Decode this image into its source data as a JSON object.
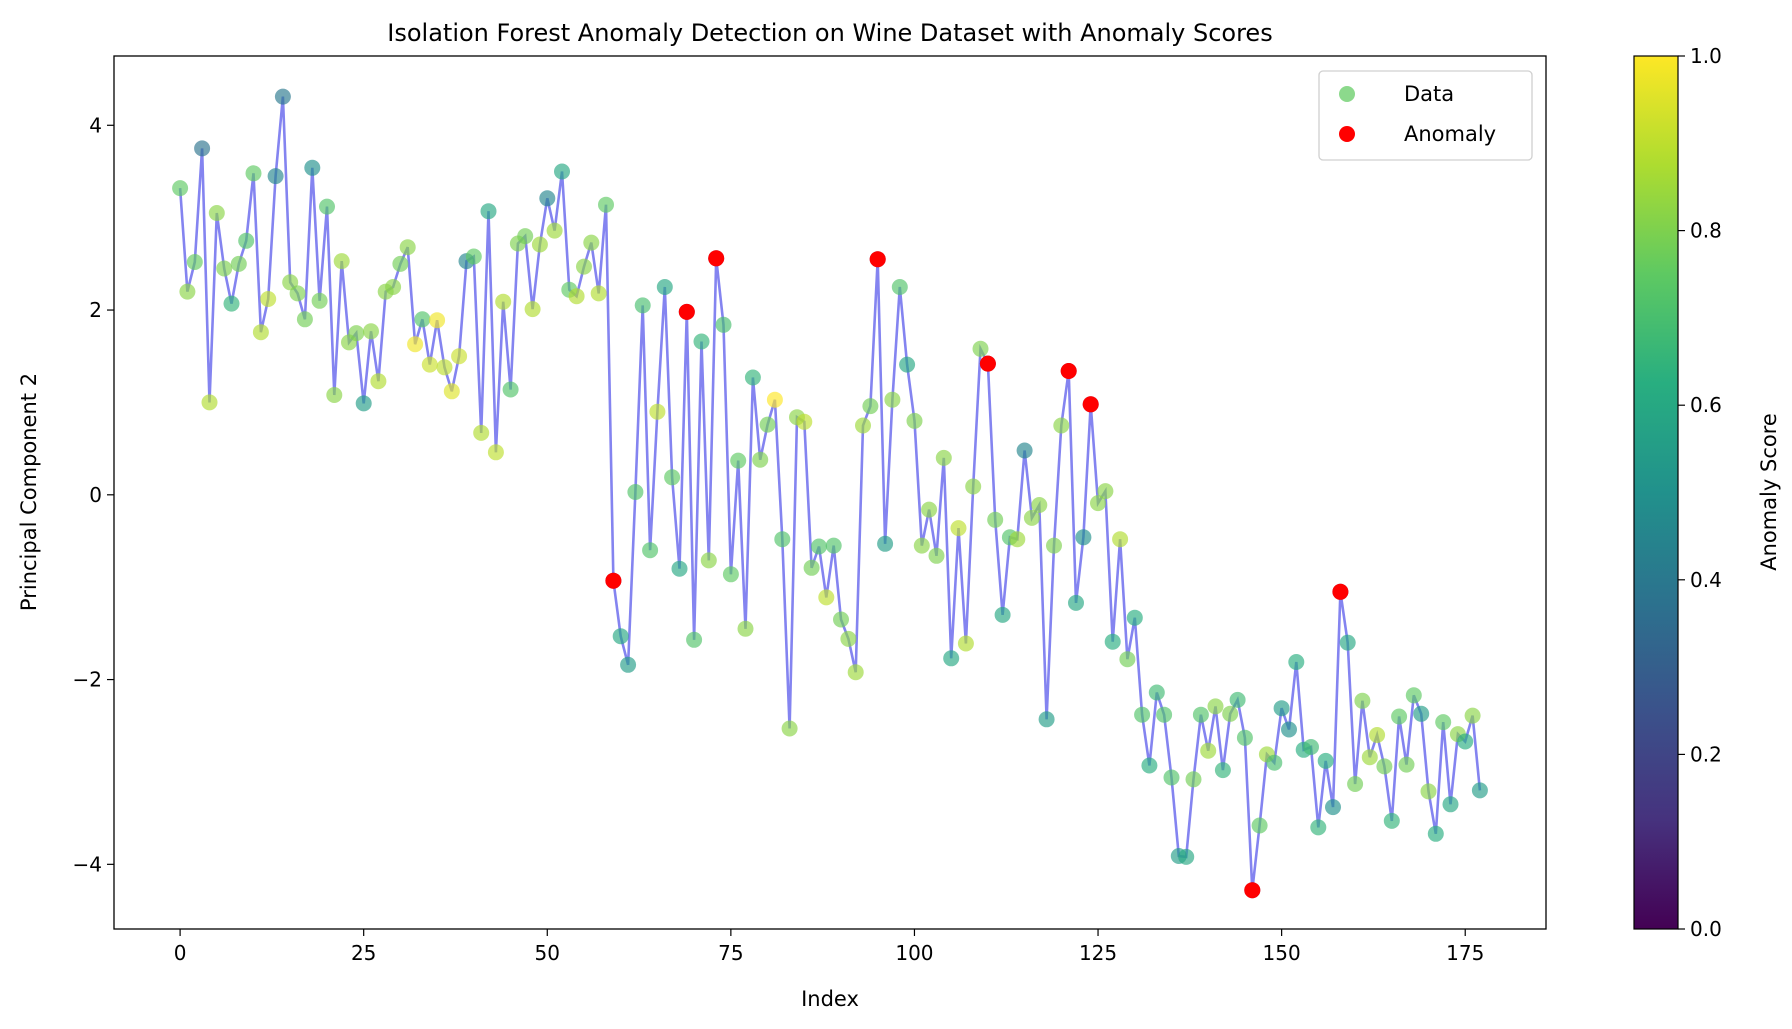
{
  "chart_data": {
    "type": "scatter",
    "title": "Isolation Forest Anomaly Detection on Wine Dataset with Anomaly Scores",
    "xlabel": "Index",
    "ylabel": "Principal Component 2",
    "xlim": [
      -9,
      186
    ],
    "ylim": [
      -4.7,
      4.75
    ],
    "xticks": [
      0,
      25,
      50,
      75,
      100,
      125,
      150,
      175
    ],
    "yticks": [
      -4,
      -2,
      0,
      2,
      4
    ],
    "legend_position": "top-right",
    "line_color": "#7777ee",
    "anomaly_color": "#ff0000",
    "data_marker_color": "#66cc66",
    "series": [
      {
        "name": "Data",
        "y": [
          3.32,
          2.2,
          2.52,
          3.75,
          1.0,
          3.05,
          2.45,
          2.07,
          2.5,
          2.75,
          3.48,
          1.76,
          2.12,
          3.45,
          4.31,
          2.3,
          2.18,
          1.9,
          3.54,
          2.1,
          3.12,
          1.08,
          2.53,
          1.65,
          1.75,
          0.99,
          1.77,
          1.23,
          2.2,
          2.25,
          2.5,
          2.68,
          1.63,
          1.9,
          1.41,
          1.89,
          1.38,
          1.12,
          1.5,
          2.53,
          2.58,
          0.67,
          3.07,
          0.46,
          2.09,
          1.14,
          2.72,
          2.8,
          2.01,
          2.71,
          3.21,
          2.86,
          3.5,
          2.22,
          2.15,
          2.47,
          2.73,
          2.18,
          3.14,
          -0.93,
          -1.53,
          -1.84,
          0.03,
          2.05,
          -0.6,
          0.9,
          2.25,
          0.19,
          -0.8,
          1.98,
          -1.57,
          1.66,
          -0.71,
          2.56,
          1.84,
          -0.86,
          0.37,
          -1.45,
          1.27,
          0.38,
          0.76,
          1.03,
          -0.48,
          -2.53,
          0.84,
          0.79,
          -0.79,
          -0.56,
          -1.11,
          -0.55,
          -1.35,
          -1.56,
          -1.92,
          0.75,
          0.96,
          2.55,
          -0.53,
          1.03,
          2.25,
          1.41,
          0.8,
          -0.55,
          -0.16,
          -0.66,
          0.4,
          -1.77,
          -0.36,
          -1.61,
          0.09,
          1.58,
          1.42,
          -0.27,
          -1.3,
          -0.46,
          -0.48,
          0.48,
          -0.25,
          -0.11,
          -2.43,
          -0.55,
          0.75,
          1.34,
          -1.17,
          -0.46,
          0.98,
          -0.09,
          0.04,
          -1.59,
          -0.48,
          -1.78,
          -1.33,
          -2.38,
          -2.93,
          -2.14,
          -2.38,
          -3.06,
          -3.91,
          -3.92,
          -3.08,
          -2.38,
          -2.77,
          -2.29,
          -2.98,
          -2.37,
          -2.22,
          -2.63,
          -4.28,
          -3.58,
          -2.81,
          -2.9,
          -2.31,
          -2.54,
          -1.81,
          -2.76,
          -2.73,
          -3.6,
          -2.88,
          -3.38,
          -1.05,
          -1.6,
          -3.13,
          -2.23,
          -2.84,
          -2.6,
          -2.94,
          -3.53,
          -2.4,
          -2.92,
          -2.17,
          -2.37,
          -3.21,
          -3.67,
          -2.46,
          -3.35,
          -2.59,
          -2.67,
          -2.39,
          -3.2
        ],
        "score": [
          0.75,
          0.82,
          0.76,
          0.38,
          0.88,
          0.82,
          0.8,
          0.65,
          0.78,
          0.72,
          0.75,
          0.88,
          0.9,
          0.45,
          0.4,
          0.82,
          0.8,
          0.78,
          0.5,
          0.78,
          0.72,
          0.82,
          0.85,
          0.82,
          0.8,
          0.55,
          0.82,
          0.88,
          0.82,
          0.82,
          0.78,
          0.82,
          0.98,
          0.72,
          0.92,
          0.98,
          0.9,
          0.95,
          0.92,
          0.45,
          0.75,
          0.88,
          0.6,
          0.9,
          0.88,
          0.72,
          0.8,
          0.78,
          0.88,
          0.85,
          0.45,
          0.85,
          0.6,
          0.75,
          0.88,
          0.82,
          0.82,
          0.88,
          0.75,
          0.0,
          0.6,
          0.55,
          0.72,
          0.7,
          0.72,
          0.9,
          0.6,
          0.75,
          0.6,
          0.0,
          0.72,
          0.65,
          0.82,
          0.0,
          0.7,
          0.75,
          0.75,
          0.82,
          0.65,
          0.8,
          0.78,
          1.0,
          0.72,
          0.82,
          0.82,
          0.9,
          0.78,
          0.72,
          0.9,
          0.72,
          0.78,
          0.82,
          0.85,
          0.85,
          0.78,
          0.0,
          0.55,
          0.82,
          0.72,
          0.6,
          0.8,
          0.82,
          0.82,
          0.8,
          0.82,
          0.6,
          0.9,
          0.88,
          0.82,
          0.8,
          0.0,
          0.78,
          0.6,
          0.72,
          0.85,
          0.45,
          0.82,
          0.82,
          0.55,
          0.8,
          0.82,
          0.0,
          0.6,
          0.5,
          0.0,
          0.82,
          0.82,
          0.62,
          0.88,
          0.78,
          0.62,
          0.72,
          0.62,
          0.68,
          0.72,
          0.72,
          0.55,
          0.6,
          0.78,
          0.72,
          0.85,
          0.82,
          0.65,
          0.8,
          0.68,
          0.72,
          0.0,
          0.75,
          0.85,
          0.7,
          0.55,
          0.5,
          0.62,
          0.62,
          0.68,
          0.65,
          0.62,
          0.5,
          0.0,
          0.6,
          0.78,
          0.8,
          0.85,
          0.88,
          0.78,
          0.65,
          0.75,
          0.78,
          0.75,
          0.55,
          0.82,
          0.62,
          0.75,
          0.6,
          0.82,
          0.62,
          0.82,
          0.55
        ]
      },
      {
        "name": "Anomaly",
        "x": [
          59,
          69,
          73,
          95,
          110,
          121,
          124,
          146,
          158
        ],
        "y": [
          -0.93,
          1.98,
          2.56,
          2.55,
          1.42,
          1.34,
          0.98,
          -4.28,
          -1.05
        ]
      }
    ],
    "colorbar": {
      "label": "Anomaly Score",
      "range": [
        0.0,
        1.0
      ],
      "ticks": [
        "0.0",
        "0.2",
        "0.4",
        "0.6",
        "0.8",
        "1.0"
      ],
      "colormap": [
        "#440154",
        "#3b528b",
        "#21918c",
        "#5ec962",
        "#fde725"
      ]
    }
  }
}
